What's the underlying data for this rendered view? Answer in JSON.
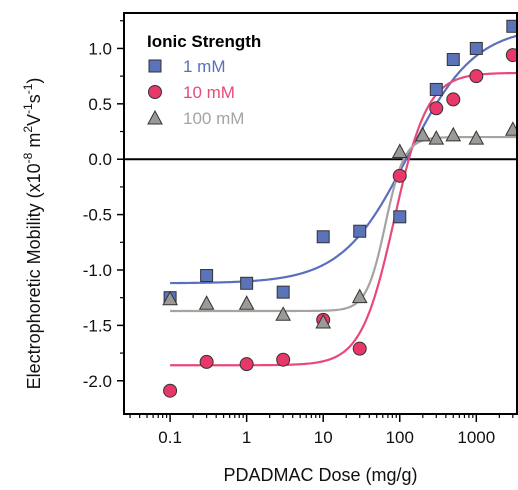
{
  "chart_data": {
    "type": "scatter",
    "xlabel": "PDADMAC Dose (mg/g)",
    "ylabel_prefix": "Electrophoretic Mobility (x10",
    "ylabel_exp1": "-8",
    "ylabel_unit_m": " m",
    "ylabel_exp2": "2",
    "ylabel_unit_v": "V",
    "ylabel_exp3": "-1",
    "ylabel_unit_s": "s",
    "ylabel_exp4": "-1",
    "ylabel_close": ")",
    "xscale": "log",
    "xlim": [
      0.025,
      3400
    ],
    "ylim": [
      -2.3,
      1.32
    ],
    "xticks": [
      0.1,
      1,
      10,
      100,
      1000
    ],
    "xtick_labels": [
      "0.1",
      "1",
      "10",
      "100",
      "1000"
    ],
    "yticks": [
      1.0,
      0.5,
      0.0,
      -0.5,
      -1.0,
      -1.5,
      -2.0
    ],
    "ytick_labels": [
      "1.0",
      "0.5",
      "0.0",
      "-0.5",
      "-1.0",
      "-1.5",
      "-2.0"
    ],
    "zero_line": true,
    "legend": {
      "title": "Ionic Strength",
      "placement": "top-left"
    },
    "series": [
      {
        "name": "1 mM",
        "marker": "square",
        "color": "#5b73b8",
        "line_color": "#5a6fbf",
        "x": [
          0.1,
          0.3,
          1,
          3,
          10,
          30,
          100,
          300,
          500,
          1000,
          3000
        ],
        "y": [
          -1.25,
          -1.05,
          -1.12,
          -1.2,
          -0.7,
          -0.65,
          -0.52,
          0.63,
          0.9,
          1.0,
          1.2
        ],
        "fit": {
          "bottom": -1.12,
          "top": 1.2,
          "x50": 130,
          "hill": 1.0
        }
      },
      {
        "name": "10 mM",
        "marker": "circle",
        "color": "#e8386a",
        "line_color": "#e84a78",
        "x": [
          0.1,
          0.3,
          1,
          3,
          10,
          30,
          100,
          300,
          500,
          1000,
          3000
        ],
        "y": [
          -2.09,
          -1.83,
          -1.85,
          -1.81,
          -1.45,
          -1.71,
          -0.15,
          0.46,
          0.54,
          0.75,
          0.94
        ],
        "fit": {
          "bottom": -1.86,
          "top": 0.78,
          "x50": 85,
          "hill": 2.0
        }
      },
      {
        "name": "100 mM",
        "marker": "triangle",
        "color": "#9c9a96",
        "line_color": "#a6a4a0",
        "x": [
          0.1,
          0.3,
          1,
          3,
          10,
          30,
          100,
          200,
          300,
          500,
          1000,
          3000
        ],
        "y": [
          -1.26,
          -1.3,
          -1.3,
          -1.4,
          -1.47,
          -1.24,
          0.07,
          0.22,
          0.19,
          0.22,
          0.19,
          0.27
        ],
        "fit": {
          "bottom": -1.37,
          "top": 0.2,
          "x50": 65,
          "hill": 3.5
        }
      }
    ]
  }
}
